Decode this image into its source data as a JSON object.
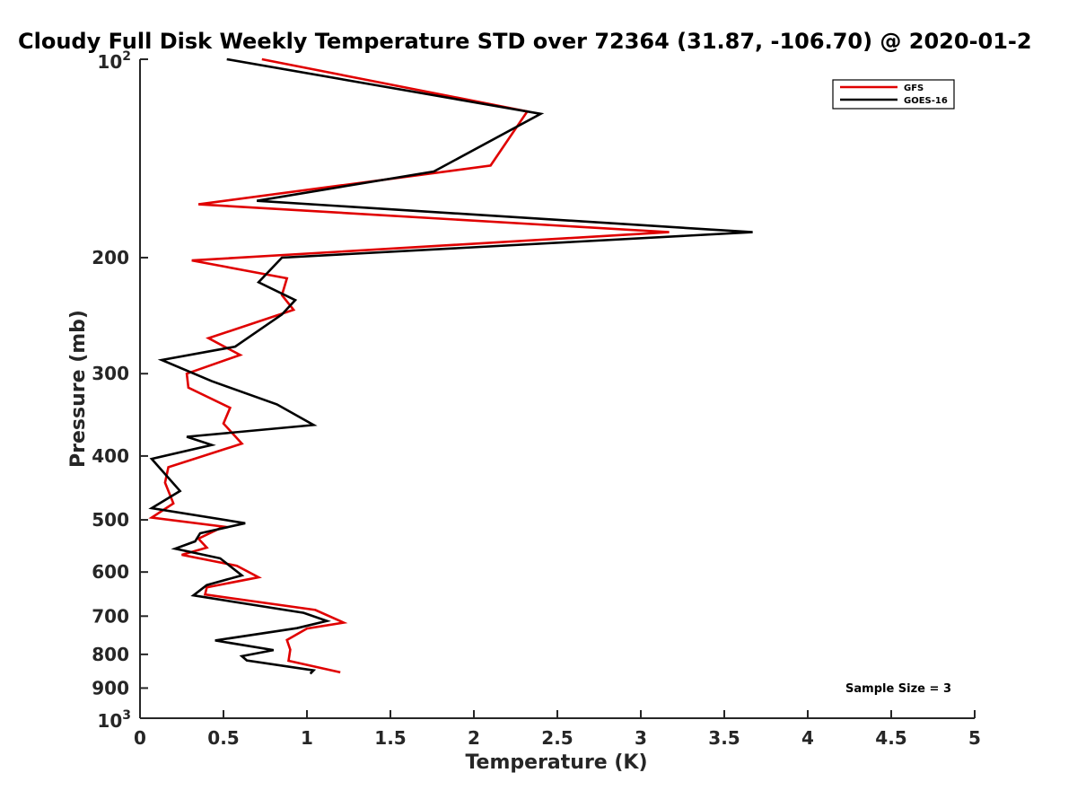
{
  "chart_data": {
    "type": "line",
    "title": "Cloudy Full Disk Weekly Temperature STD over 72364 (31.87, -106.70) @ 2020-01-2",
    "xlabel": "Temperature (K)",
    "ylabel": "Pressure (mb)",
    "xlim": [
      0,
      5
    ],
    "ylim": [
      100,
      1000
    ],
    "yscale": "log",
    "y_reversed": true,
    "xticks": [
      0,
      0.5,
      1,
      1.5,
      2,
      2.5,
      3,
      3.5,
      4,
      4.5,
      5
    ],
    "xtick_labels": [
      "0",
      "0.5",
      "1",
      "1.5",
      "2",
      "2.5",
      "3",
      "3.5",
      "4",
      "4.5",
      "5"
    ],
    "yticks": [
      200,
      300,
      400,
      500,
      600,
      700,
      800,
      900
    ],
    "ytick_labels": [
      "200",
      "300",
      "400",
      "500",
      "600",
      "700",
      "800",
      "900"
    ],
    "ytick_top": {
      "base": "10",
      "exp": "2"
    },
    "ytick_bottom": {
      "base": "10",
      "exp": "3"
    },
    "grid": false,
    "legend_position": "top-right",
    "annotation": "Sample Size = 3",
    "series": [
      {
        "name": "GFS",
        "color": "#e00000",
        "x": [
          0.73,
          2.32,
          2.1,
          0.35,
          3.17,
          0.31,
          0.88,
          0.85,
          0.92,
          0.41,
          0.6,
          0.28,
          0.29,
          0.54,
          0.5,
          0.61,
          0.17,
          0.15,
          0.2,
          0.07,
          0.5,
          0.35,
          0.4,
          0.25,
          0.58,
          0.71,
          0.4,
          0.39,
          1.05,
          1.22,
          1.0,
          0.88,
          0.9,
          0.89,
          1.2
        ],
        "y": [
          100,
          120,
          145,
          166,
          183,
          202,
          215,
          228,
          240,
          265,
          281,
          300,
          315,
          338,
          357,
          383,
          416,
          439,
          472,
          496,
          512,
          534,
          551,
          565,
          587,
          611,
          633,
          649,
          685,
          716,
          731,
          761,
          787,
          818,
          852
        ]
      },
      {
        "name": "GOES-16",
        "color": "#000000",
        "x": [
          0.52,
          2.4,
          1.76,
          0.7,
          3.67,
          0.85,
          0.71,
          0.93,
          0.85,
          0.57,
          0.13,
          0.43,
          0.82,
          1.04,
          0.28,
          0.43,
          0.07,
          0.11,
          0.24,
          0.07,
          0.63,
          0.36,
          0.33,
          0.21,
          0.48,
          0.61,
          0.4,
          0.32,
          0.98,
          1.12,
          0.94,
          0.45,
          0.8,
          0.61,
          0.64,
          1.04,
          1.02
        ],
        "y": [
          100,
          121,
          148,
          164,
          183,
          200,
          218,
          232,
          244,
          273,
          286,
          308,
          334,
          359,
          374,
          385,
          404,
          415,
          452,
          480,
          506,
          524,
          539,
          553,
          572,
          607,
          628,
          651,
          692,
          712,
          730,
          762,
          788,
          805,
          817,
          846,
          856
        ]
      }
    ]
  }
}
